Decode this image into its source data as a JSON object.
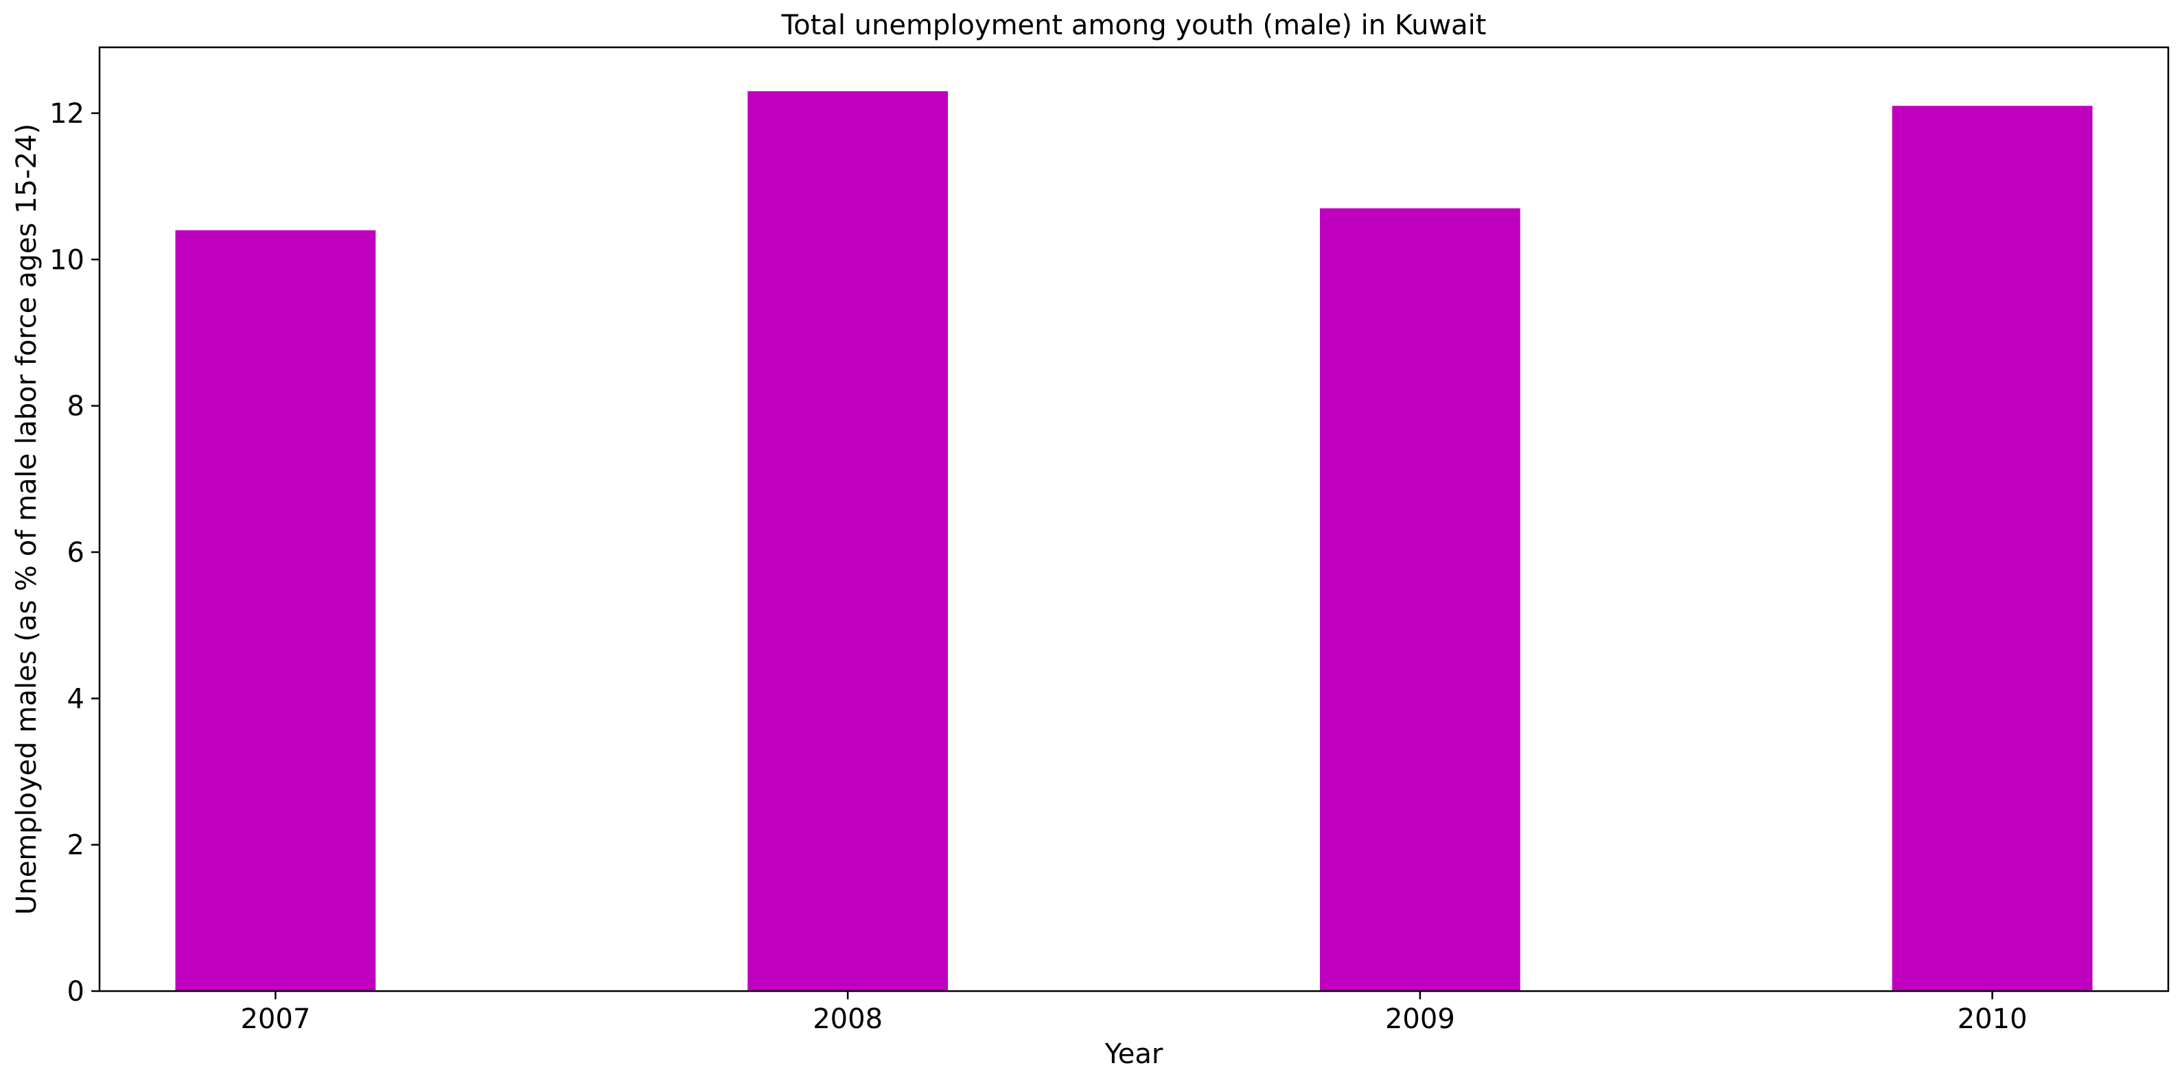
{
  "chart_data": {
    "type": "bar",
    "title": "Total unemployment among youth (male) in Kuwait",
    "xlabel": "Year",
    "ylabel": "Unemployed males (as % of male labor force ages 15-24)",
    "categories": [
      "2007",
      "2008",
      "2009",
      "2010"
    ],
    "values": [
      10.4,
      12.3,
      10.7,
      12.1
    ],
    "ylim": [
      0,
      12.9
    ],
    "yticks": [
      0,
      2,
      4,
      6,
      8,
      10,
      12
    ],
    "bar_color": "#bf00bf",
    "grid": false,
    "legend": "none"
  }
}
